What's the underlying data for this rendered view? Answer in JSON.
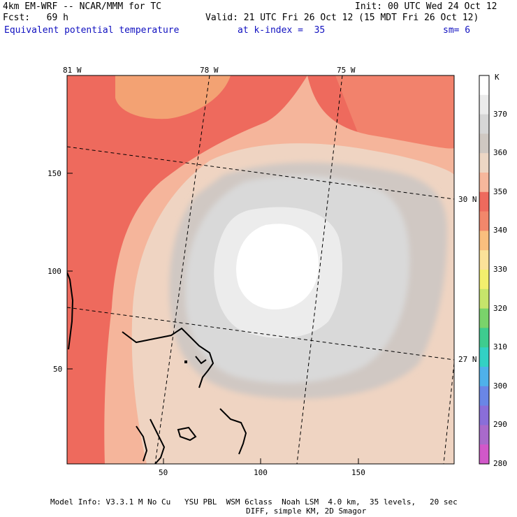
{
  "header": {
    "model": "4km EM-WRF -- NCAR/MMM for TC",
    "forecast": "Fcst:   69 h",
    "init": "Init: 00 UTC Wed 24 Oct 12",
    "valid": "Valid: 21 UTC Fri 26 Oct 12 (15 MDT Fri 26 Oct 12)",
    "field": "Equivalent potential temperature",
    "level": "at k-index =  35",
    "smoothing": "sm= 6"
  },
  "axes": {
    "longitude_labels": [
      "81 W",
      "78 W",
      "75 W"
    ],
    "latitude_labels": [
      "30 N",
      "27 N"
    ],
    "y_ticks": [
      "150",
      "100",
      "50"
    ],
    "x_ticks": [
      "50",
      "100",
      "150"
    ]
  },
  "colorbar": {
    "unit": "K",
    "labels": [
      "370",
      "360",
      "350",
      "340",
      "330",
      "320",
      "310",
      "300",
      "290",
      "280"
    ],
    "colors": [
      "#ffffff",
      "#ebebeb",
      "#d6d6d6",
      "#cfc8c2",
      "#ecd6c4",
      "#f6b79c",
      "#ee6a5d",
      "#f2876b",
      "#f9bf7e",
      "#fbe299",
      "#f3ef6d",
      "#c6e46b",
      "#7ad36b",
      "#3ecc8f",
      "#33d1c4",
      "#4fb1ea",
      "#6a86e6",
      "#8a6ed9",
      "#a96acb",
      "#d158c9"
    ]
  },
  "footer": {
    "line1": "Model Info: V3.3.1 M No Cu   YSU PBL  WSM 6class  Noah LSM  4.0 km,  35 levels,   20 sec",
    "line2": "DIFF, simple KM, 2D Smagor"
  }
}
